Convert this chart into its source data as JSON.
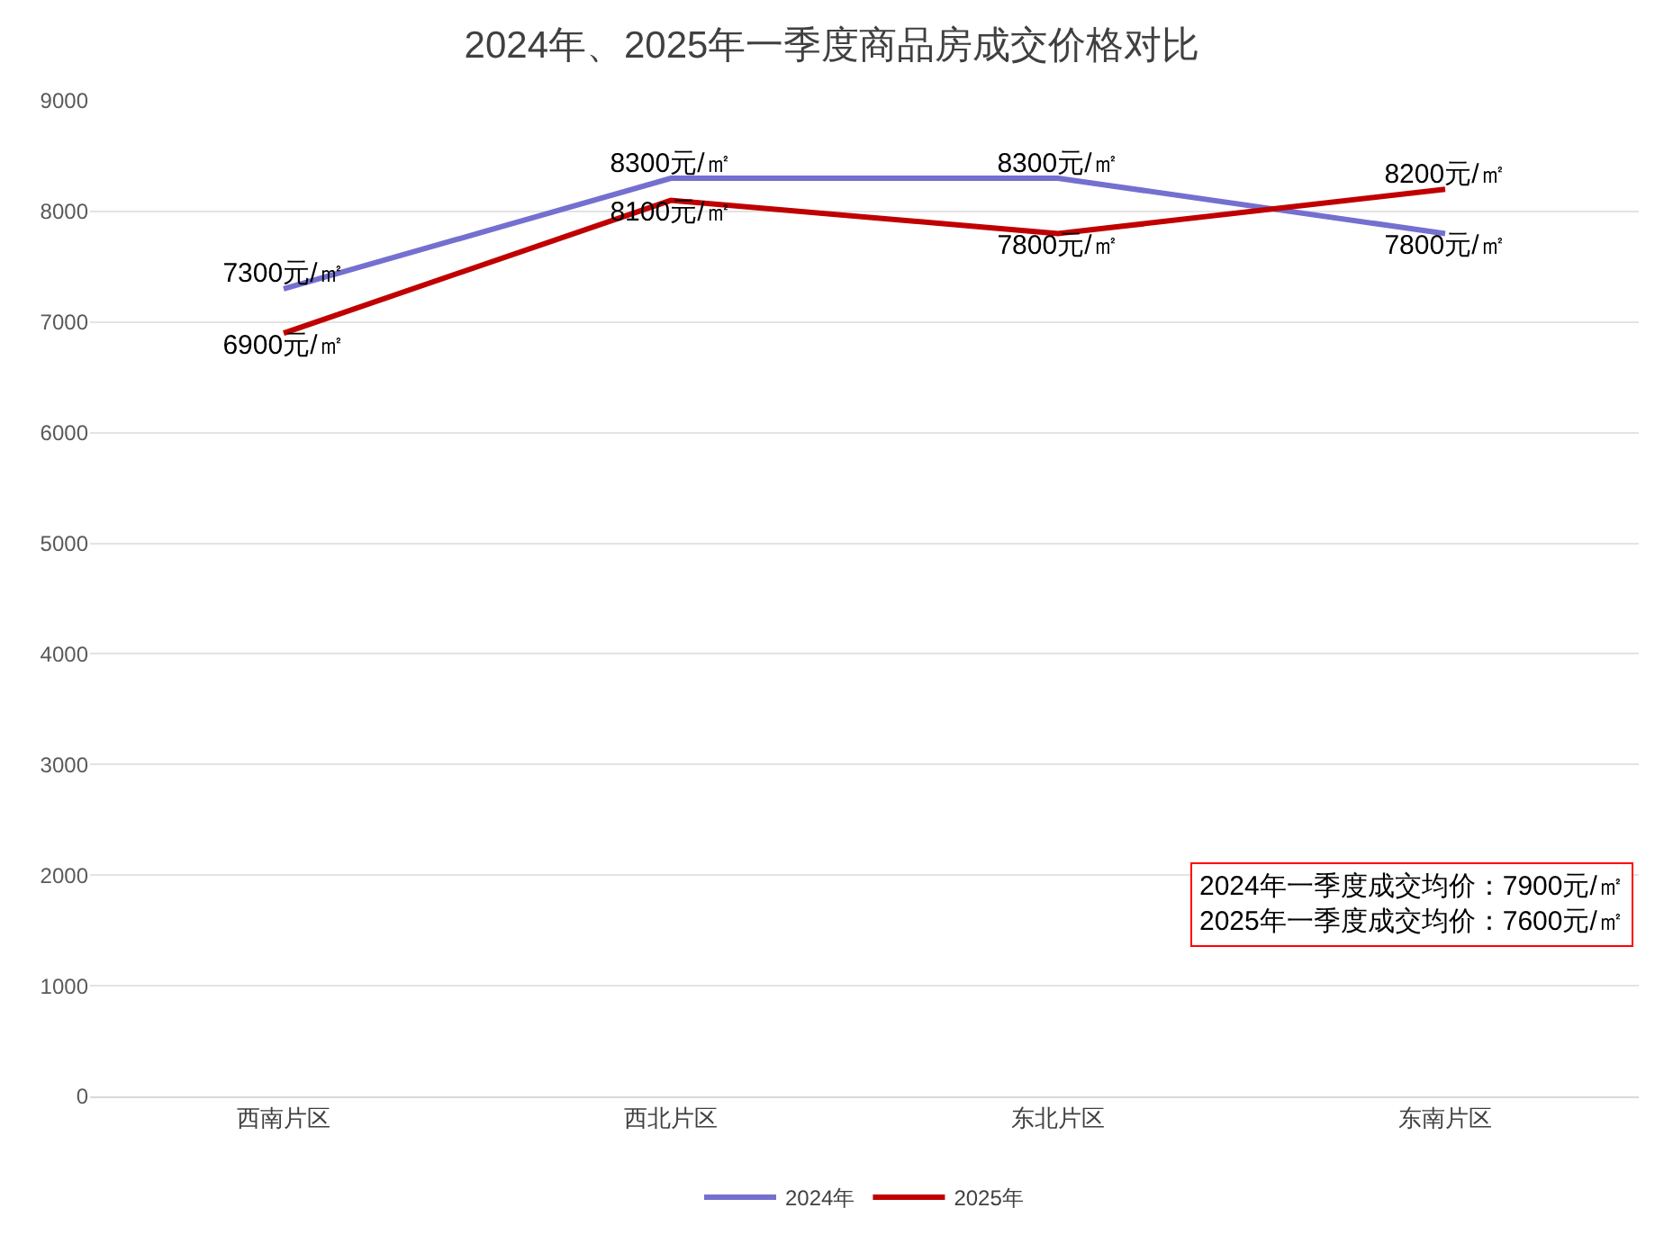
{
  "chart_data": {
    "type": "line",
    "title": "2024年、2025年一季度商品房成交价格对比",
    "categories": [
      "西南片区",
      "西北片区",
      "东北片区",
      "东南片区"
    ],
    "series": [
      {
        "name": "2024年",
        "color": "#7470d0",
        "values": [
          7300,
          8300,
          8300,
          7800
        ],
        "value_labels": [
          "7300元/㎡",
          "8300元/㎡",
          "8300元/㎡",
          "7800元/㎡"
        ]
      },
      {
        "name": "2025年",
        "color": "#c00000",
        "values": [
          6900,
          8100,
          7800,
          8200
        ],
        "value_labels": [
          "6900元/㎡",
          "8100元/㎡",
          "7800元/㎡",
          "8200元/㎡"
        ]
      }
    ],
    "ylim": [
      0,
      9000
    ],
    "yticks": [
      0,
      1000,
      2000,
      3000,
      4000,
      5000,
      6000,
      7000,
      8000,
      9000
    ],
    "grid": "y",
    "legend": "bottom",
    "line_style": "solid",
    "annotations": [
      "2024年一季度成交均价：7900元/㎡",
      "2025年一季度成交均价：7600元/㎡"
    ]
  }
}
